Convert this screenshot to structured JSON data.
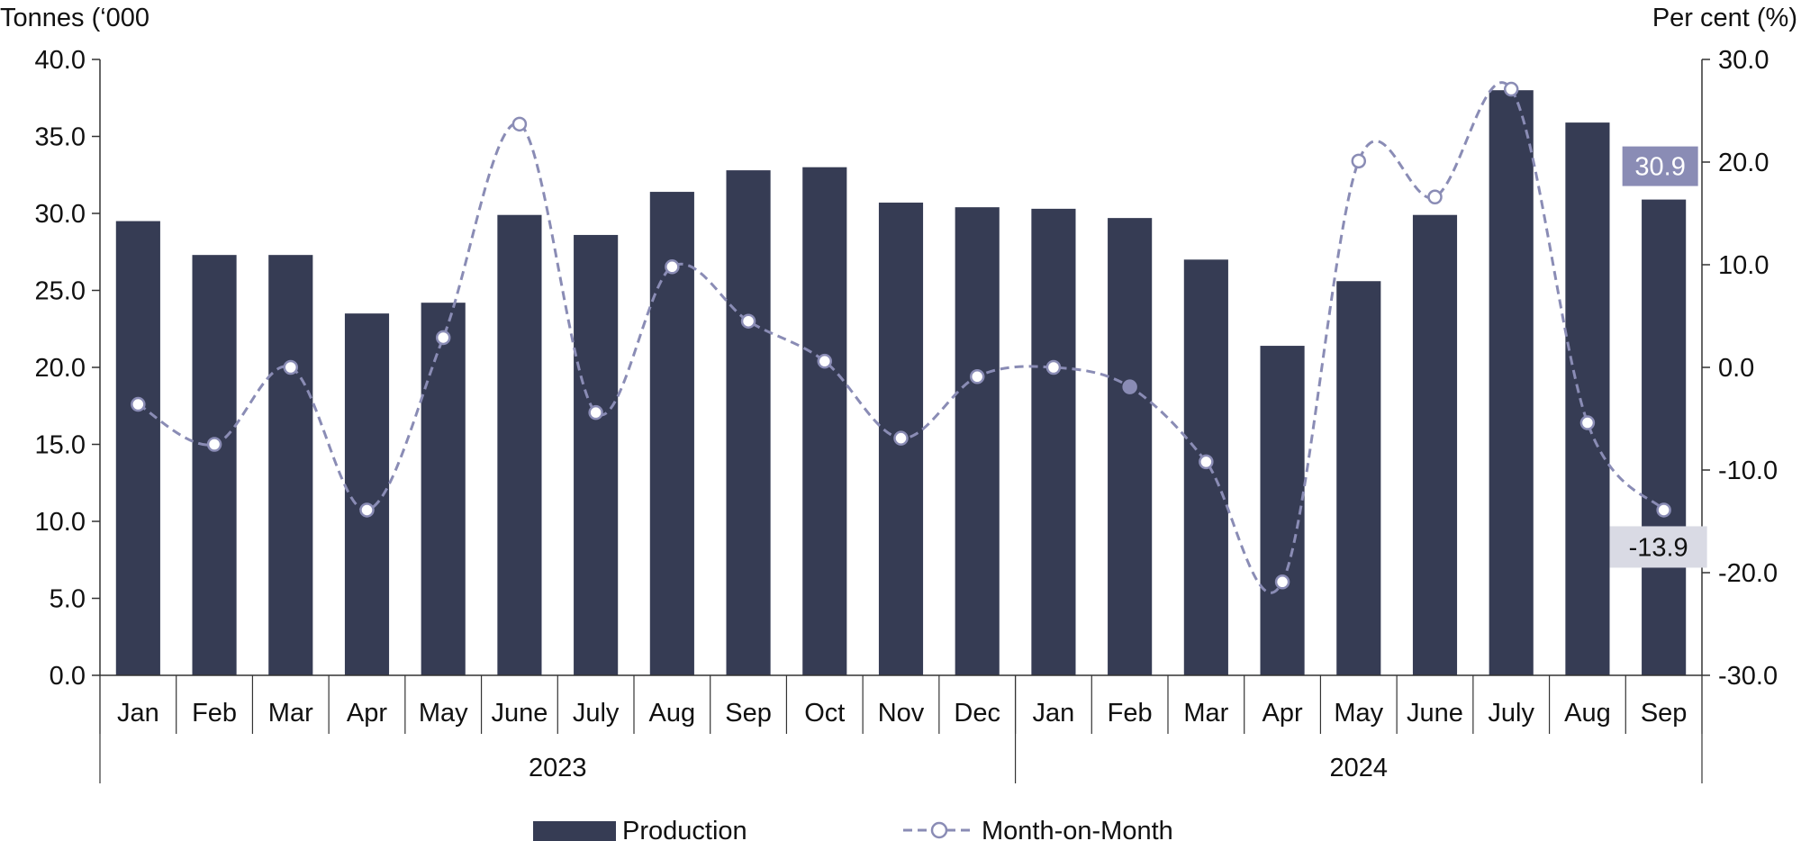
{
  "chart_data": {
    "type": "bar",
    "left_axis_label": "Tonnes (‘000",
    "right_axis_label": "Per cent (%)",
    "left_ticks": [
      "0.0",
      "5.0",
      "10.0",
      "15.0",
      "20.0",
      "25.0",
      "30.0",
      "35.0",
      "40.0"
    ],
    "right_ticks": [
      "-30.0",
      "-20.0",
      "-10.0",
      "0.0",
      "10.0",
      "20.0",
      "30.0"
    ],
    "ylim_left": [
      0,
      40
    ],
    "ylim_right": [
      -30,
      30
    ],
    "categories": [
      "Jan",
      "Feb",
      "Mar",
      "Apr",
      "May",
      "June",
      "July",
      "Aug",
      "Sep",
      "Oct",
      "Nov",
      "Dec",
      "Jan",
      "Feb",
      "Mar",
      "Apr",
      "May",
      "June",
      "July",
      "Aug",
      "Sep"
    ],
    "groups": [
      {
        "label": "2023",
        "count": 12
      },
      {
        "label": "2024",
        "count": 9
      }
    ],
    "series": [
      {
        "name": "Production",
        "type": "bar",
        "axis": "left",
        "color": "#363c54",
        "values": [
          29.5,
          27.3,
          27.3,
          23.5,
          24.2,
          29.9,
          28.6,
          31.4,
          32.8,
          33.0,
          30.7,
          30.4,
          30.3,
          29.7,
          27.0,
          21.4,
          25.6,
          29.9,
          38.0,
          35.9,
          30.9
        ]
      },
      {
        "name": "Month-on-Month",
        "type": "line",
        "axis": "right",
        "color": "#8a8cb5",
        "values": [
          -3.6,
          -7.5,
          0.0,
          -13.9,
          2.9,
          23.7,
          -4.4,
          9.8,
          4.5,
          0.6,
          -6.9,
          -0.9,
          0.0,
          -1.9,
          -9.2,
          -20.9,
          20.1,
          16.6,
          27.1,
          -5.4,
          -13.9
        ]
      }
    ],
    "callouts": [
      {
        "text": "30.9",
        "bg": "#8a8cb5",
        "fg": "#ffffff"
      },
      {
        "text": "-13.9",
        "bg": "#d9dae4",
        "fg": "#111111"
      }
    ]
  }
}
